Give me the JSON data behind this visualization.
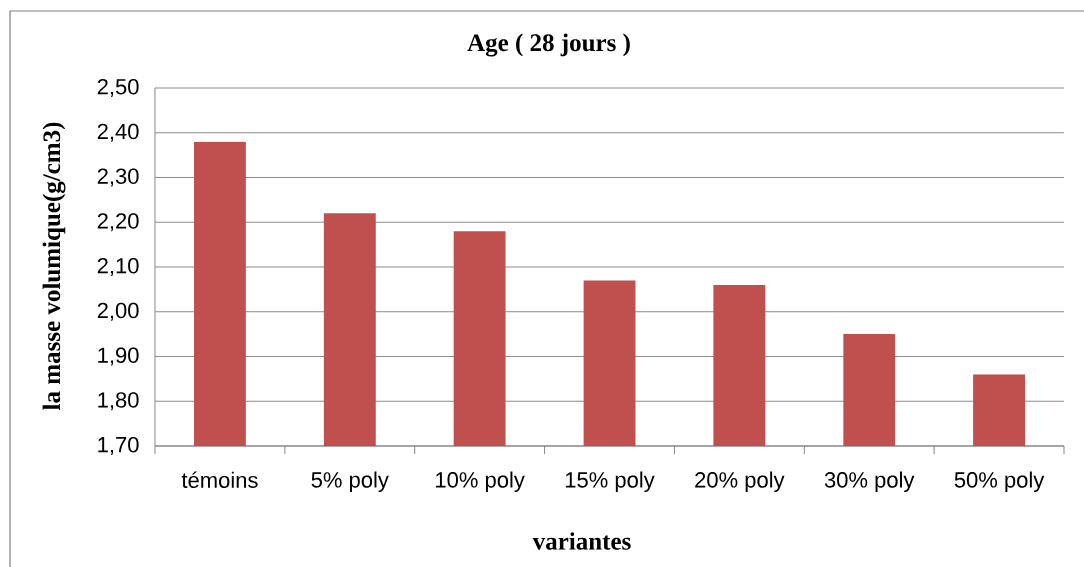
{
  "chart_data": {
    "type": "bar",
    "title": "Age ( 28 jours )",
    "xlabel": "variantes",
    "ylabel": "la masse volumique(g/cm3)",
    "categories": [
      "témoins",
      "5% poly",
      "10% poly",
      "15% poly",
      "20% poly",
      "30% poly",
      "50% poly"
    ],
    "values": [
      2.38,
      2.22,
      2.18,
      2.07,
      2.06,
      1.95,
      1.86
    ],
    "color": "#c0504d",
    "ylim": [
      1.7,
      2.5
    ],
    "yticks": [
      {
        "value": 1.7,
        "label": "1,70"
      },
      {
        "value": 1.8,
        "label": "1,80"
      },
      {
        "value": 1.9,
        "label": "1,90"
      },
      {
        "value": 2.0,
        "label": "2,00"
      },
      {
        "value": 2.1,
        "label": "2,10"
      },
      {
        "value": 2.2,
        "label": "2,20"
      },
      {
        "value": 2.3,
        "label": "2,30"
      },
      {
        "value": 2.4,
        "label": "2,40"
      },
      {
        "value": 2.5,
        "label": "2,50"
      }
    ],
    "grid": "y"
  }
}
